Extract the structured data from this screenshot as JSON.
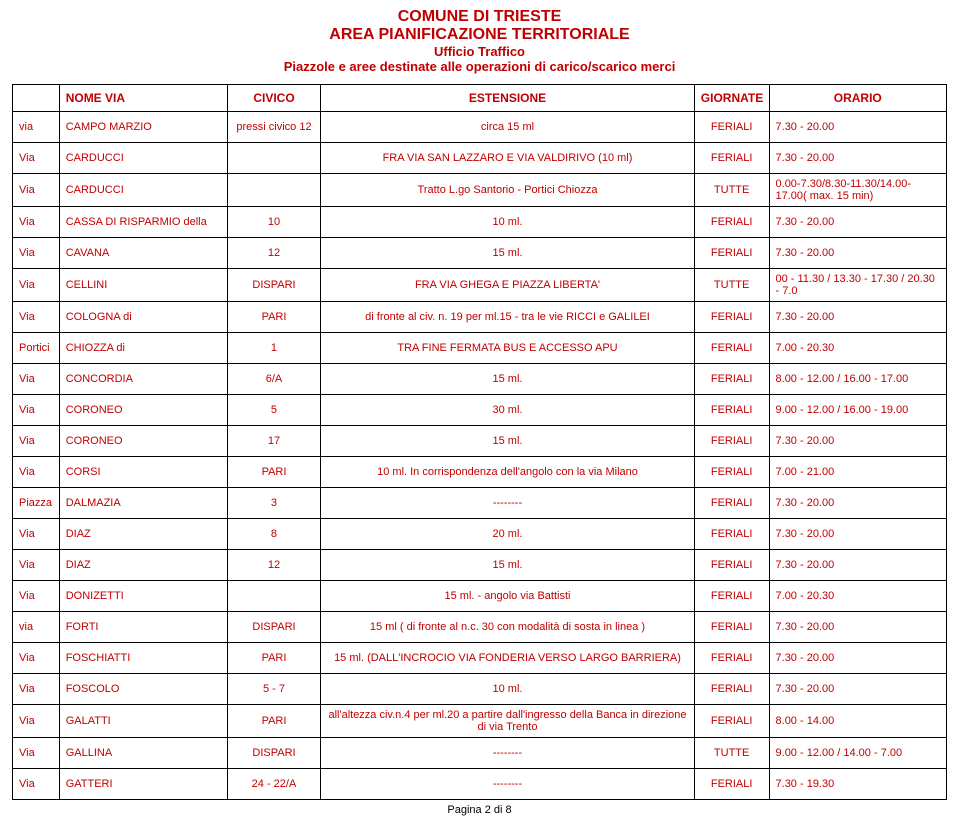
{
  "header": {
    "line1": "COMUNE DI TRIESTE",
    "line2": "AREA PIANIFICAZIONE TERRITORIALE",
    "line3": "Ufficio Traffico",
    "line4": "Piazzole e aree destinate alle operazioni di carico/scarico merci"
  },
  "colors": {
    "text": "#c00000",
    "border": "#000000",
    "background": "#ffffff"
  },
  "table": {
    "columns": [
      "",
      "NOME VIA",
      "CIVICO",
      "ESTENSIONE",
      "GIORNATE",
      "ORARIO"
    ],
    "rows": [
      [
        "via",
        "CAMPO MARZIO",
        "pressi civico 12",
        "circa 15 ml",
        "FERIALI",
        "7.30 - 20.00"
      ],
      [
        "Via",
        "CARDUCCI",
        "",
        "FRA VIA SAN LAZZARO E VIA VALDIRIVO (10 ml)",
        "FERIALI",
        "7.30 - 20.00"
      ],
      [
        "Via",
        "CARDUCCI",
        "",
        "Tratto L.go Santorio - Portici Chiozza",
        "TUTTE",
        "0.00-7.30/8.30-11.30/14.00-17.00( max. 15 min)"
      ],
      [
        "Via",
        "CASSA DI RISPARMIO della",
        "10",
        "10 ml.",
        "FERIALI",
        "7.30 - 20.00"
      ],
      [
        "Via",
        "CAVANA",
        "12",
        "15 ml.",
        "FERIALI",
        "7.30 - 20.00"
      ],
      [
        "Via",
        "CELLINI",
        "DISPARI",
        "FRA VIA GHEGA E PIAZZA LIBERTA'",
        "TUTTE",
        "00 - 11.30 / 13.30 - 17.30 / 20.30 - 7.0"
      ],
      [
        "Via",
        "COLOGNA di",
        "PARI",
        "di fronte al civ. n. 19  per ml.15 - tra le vie RICCI e  GALILEI",
        "FERIALI",
        "7.30 - 20.00"
      ],
      [
        "Portici",
        "CHIOZZA di",
        "1",
        "TRA FINE FERMATA BUS E ACCESSO APU",
        "FERIALI",
        "7.00 - 20.30"
      ],
      [
        "Via",
        "CONCORDIA",
        "6/A",
        "15 ml.",
        "FERIALI",
        "8.00 - 12.00 / 16.00 - 17.00"
      ],
      [
        "Via",
        "CORONEO",
        "5",
        "30 ml.",
        "FERIALI",
        "9.00 - 12.00 / 16.00 - 19.00"
      ],
      [
        "Via",
        "CORONEO",
        "17",
        "15 ml.",
        "FERIALI",
        "7.30 - 20.00"
      ],
      [
        "Via",
        "CORSI",
        "PARI",
        "10 ml.   In corrispondenza dell'angolo con la via Milano",
        "FERIALI",
        "7.00 - 21.00"
      ],
      [
        "Piazza",
        "DALMAZIA",
        "3",
        "--------",
        "FERIALI",
        "7.30 - 20.00"
      ],
      [
        "Via",
        "DIAZ",
        "8",
        "20 ml.",
        "FERIALI",
        "7.30 - 20.00"
      ],
      [
        "Via",
        "DIAZ",
        "12",
        "15 ml.",
        "FERIALI",
        "7.30 - 20.00"
      ],
      [
        "Via",
        "DONIZETTI",
        "",
        "15 ml. - angolo via Battisti",
        "FERIALI",
        "7.00 - 20.30"
      ],
      [
        "via",
        "FORTI",
        "DISPARI",
        "15 ml ( di fronte al n.c. 30 con modalità di sosta in linea )",
        "FERIALI",
        "7.30 - 20.00"
      ],
      [
        "Via",
        "FOSCHIATTI",
        "PARI",
        "15 ml. (DALL'INCROCIO VIA FONDERIA VERSO LARGO BARRIERA)",
        "FERIALI",
        "7.30 - 20.00"
      ],
      [
        "Via",
        "FOSCOLO",
        "5 - 7",
        "10 ml.",
        "FERIALI",
        "7.30 - 20.00"
      ],
      [
        "Via",
        "GALATTI",
        "PARI",
        "all'altezza civ.n.4 per ml.20 a partire dall'ingresso della  Banca in direzione di  via Trento",
        "FERIALI",
        "8.00 - 14.00"
      ],
      [
        "Via",
        "GALLINA",
        "DISPARI",
        "--------",
        "TUTTE",
        "9.00 - 12.00 / 14.00 - 7.00"
      ],
      [
        "Via",
        "GATTERI",
        "24 - 22/A",
        "--------",
        "FERIALI",
        "7.30 - 19.30"
      ]
    ]
  },
  "footer": "Pagina 2 di 8"
}
